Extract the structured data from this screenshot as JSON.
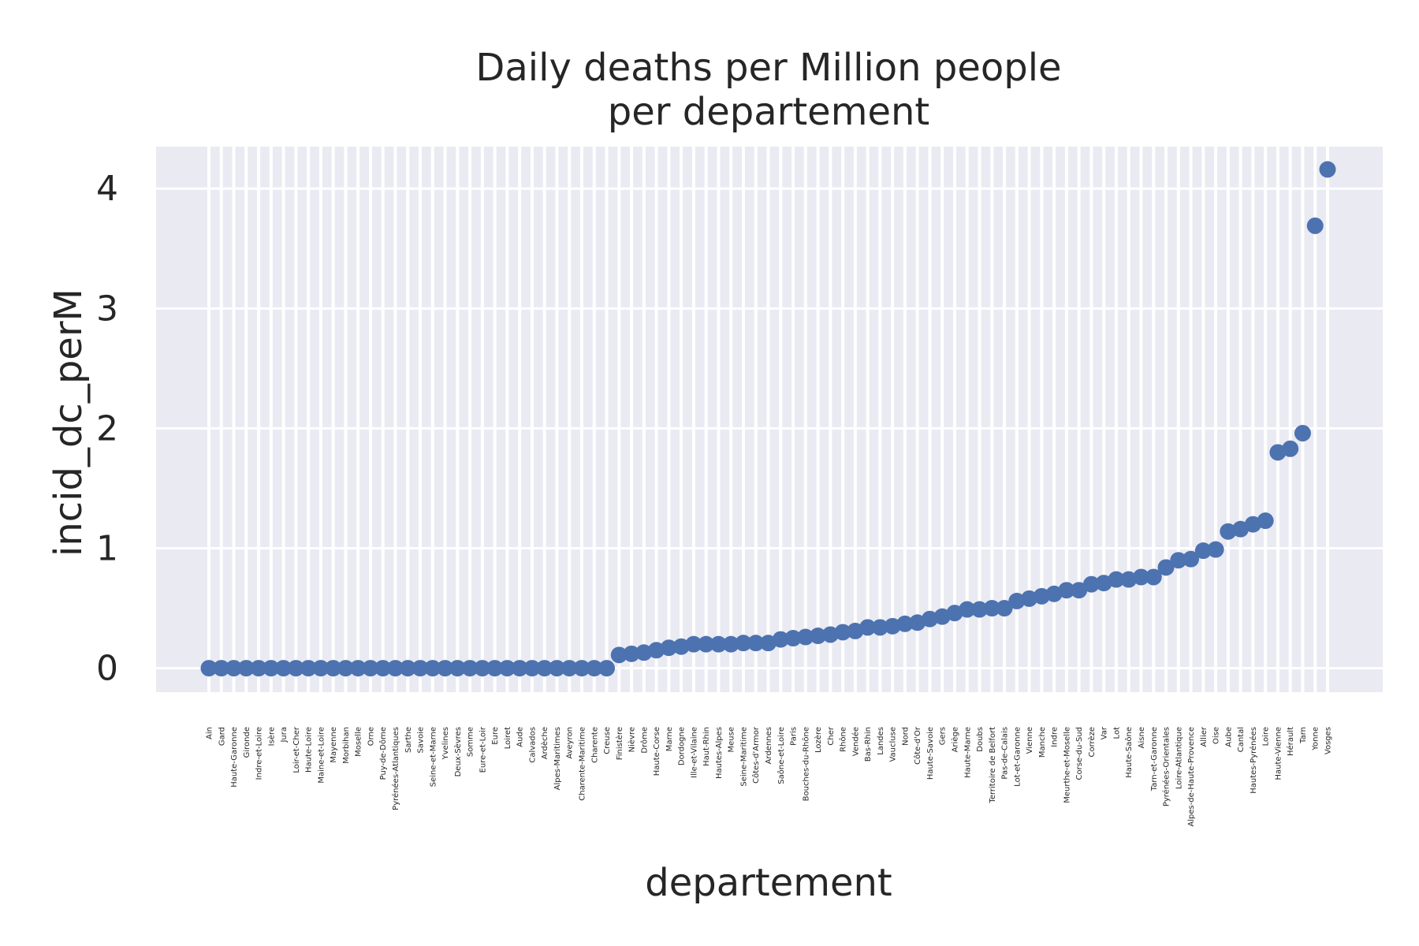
{
  "chart_data": {
    "type": "scatter",
    "title_lines": [
      "Daily deaths per Million people",
      "per departement"
    ],
    "xlabel": "departement",
    "ylabel": "incid_dc_perM",
    "ylim": [
      -0.2,
      4.35
    ],
    "yticks": [
      0,
      1,
      2,
      3,
      4
    ],
    "grid": true,
    "colors": {
      "background": "#eaeaf2",
      "grid": "#ffffff",
      "marker": "#4c72b0",
      "text": "#262626"
    },
    "categories": [
      "Ain",
      "Gard",
      "Haute-Garonne",
      "Gironde",
      "Indre-et-Loire",
      "Isère",
      "Jura",
      "Loir-et-Cher",
      "Haute-Loire",
      "Maine-et-Loire",
      "Mayenne",
      "Morbihan",
      "Moselle",
      "Orne",
      "Puy-de-Dôme",
      "Pyrénées-Atlantiques",
      "Sarthe",
      "Savoie",
      "Seine-et-Marne",
      "Yvelines",
      "Deux-Sèvres",
      "Somme",
      "Eure-et-Loir",
      "Eure",
      "Loiret",
      "Aude",
      "Calvados",
      "Ardèche",
      "Alpes-Maritimes",
      "Aveyron",
      "Charente-Maritime",
      "Charente",
      "Creuse",
      "Finistère",
      "Nièvre",
      "Drôme",
      "Haute-Corse",
      "Marne",
      "Dordogne",
      "Ille-et-Vilaine",
      "Haut-Rhin",
      "Hautes-Alpes",
      "Meuse",
      "Seine-Maritime",
      "Côtes-d'Armor",
      "Ardennes",
      "Saône-et-Loire",
      "Paris",
      "Bouches-du-Rhône",
      "Lozère",
      "Cher",
      "Rhône",
      "Vendée",
      "Bas-Rhin",
      "Landes",
      "Vaucluse",
      "Nord",
      "Côte-d'Or",
      "Haute-Savoie",
      "Gers",
      "Ariège",
      "Haute-Marne",
      "Doubs",
      "Territoire de Belfort",
      "Pas-de-Calais",
      "Lot-et-Garonne",
      "Vienne",
      "Manche",
      "Indre",
      "Meurthe-et-Moselle",
      "Corse-du-Sud",
      "Corrèze",
      "Var",
      "Lot",
      "Haute-Saône",
      "Aisne",
      "Tarn-et-Garonne",
      "Pyrénées-Orientales",
      "Loire-Atlantique",
      "Alpes-de-Haute-Provence",
      "Allier",
      "Oise",
      "Aube",
      "Cantal",
      "Hautes-Pyrénées",
      "Loire",
      "Haute-Vienne",
      "Hérault",
      "Tarn",
      "Yonne",
      "Vosges"
    ],
    "values": [
      0,
      0,
      0,
      0,
      0,
      0,
      0,
      0,
      0,
      0,
      0,
      0,
      0,
      0,
      0,
      0,
      0,
      0,
      0,
      0,
      0,
      0,
      0,
      0,
      0,
      0,
      0,
      0,
      0,
      0,
      0,
      0,
      0,
      0.11,
      0.12,
      0.13,
      0.15,
      0.17,
      0.18,
      0.2,
      0.2,
      0.2,
      0.2,
      0.21,
      0.21,
      0.21,
      0.24,
      0.25,
      0.26,
      0.27,
      0.28,
      0.3,
      0.31,
      0.34,
      0.34,
      0.35,
      0.37,
      0.38,
      0.41,
      0.43,
      0.46,
      0.49,
      0.49,
      0.5,
      0.5,
      0.56,
      0.58,
      0.6,
      0.62,
      0.65,
      0.65,
      0.7,
      0.71,
      0.74,
      0.74,
      0.76,
      0.76,
      0.84,
      0.9,
      0.91,
      0.98,
      0.99,
      1.14,
      1.16,
      1.2,
      1.23,
      1.8,
      1.83,
      1.96,
      3.69,
      4.16
    ]
  }
}
